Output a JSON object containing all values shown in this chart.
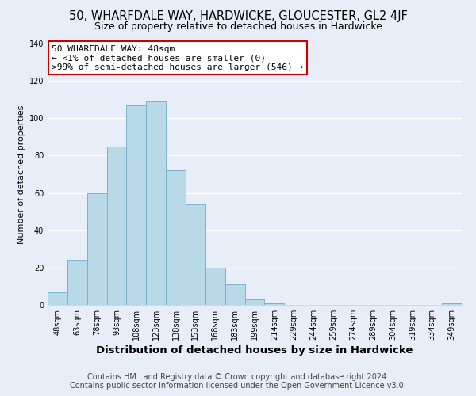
{
  "title": "50, WHARFDALE WAY, HARDWICKE, GLOUCESTER, GL2 4JF",
  "subtitle": "Size of property relative to detached houses in Hardwicke",
  "xlabel": "Distribution of detached houses by size in Hardwicke",
  "ylabel": "Number of detached properties",
  "bar_labels": [
    "48sqm",
    "63sqm",
    "78sqm",
    "93sqm",
    "108sqm",
    "123sqm",
    "138sqm",
    "153sqm",
    "168sqm",
    "183sqm",
    "199sqm",
    "214sqm",
    "229sqm",
    "244sqm",
    "259sqm",
    "274sqm",
    "289sqm",
    "304sqm",
    "319sqm",
    "334sqm",
    "349sqm"
  ],
  "bar_values": [
    7,
    24,
    60,
    85,
    107,
    109,
    72,
    54,
    20,
    11,
    3,
    1,
    0,
    0,
    0,
    0,
    0,
    0,
    0,
    0,
    1
  ],
  "bar_color": "#b8d9e8",
  "bar_edge_color": "#7ab3cc",
  "ylim": [
    0,
    140
  ],
  "yticks": [
    0,
    20,
    40,
    60,
    80,
    100,
    120,
    140
  ],
  "annotation_box_text_line1": "50 WHARFDALE WAY: 48sqm",
  "annotation_box_text_line2": "← <1% of detached houses are smaller (0)",
  "annotation_box_text_line3": ">99% of semi-detached houses are larger (546) →",
  "annotation_box_color": "white",
  "annotation_box_edge_color": "#cc0000",
  "footer_line1": "Contains HM Land Registry data © Crown copyright and database right 2024.",
  "footer_line2": "Contains public sector information licensed under the Open Government Licence v3.0.",
  "background_color": "#e8eef8",
  "plot_bg_color": "#e8eef8",
  "grid_color": "white",
  "title_fontsize": 10.5,
  "subtitle_fontsize": 9,
  "xlabel_fontsize": 9.5,
  "ylabel_fontsize": 8,
  "tick_fontsize": 7,
  "footer_fontsize": 7,
  "annotation_fontsize": 8
}
